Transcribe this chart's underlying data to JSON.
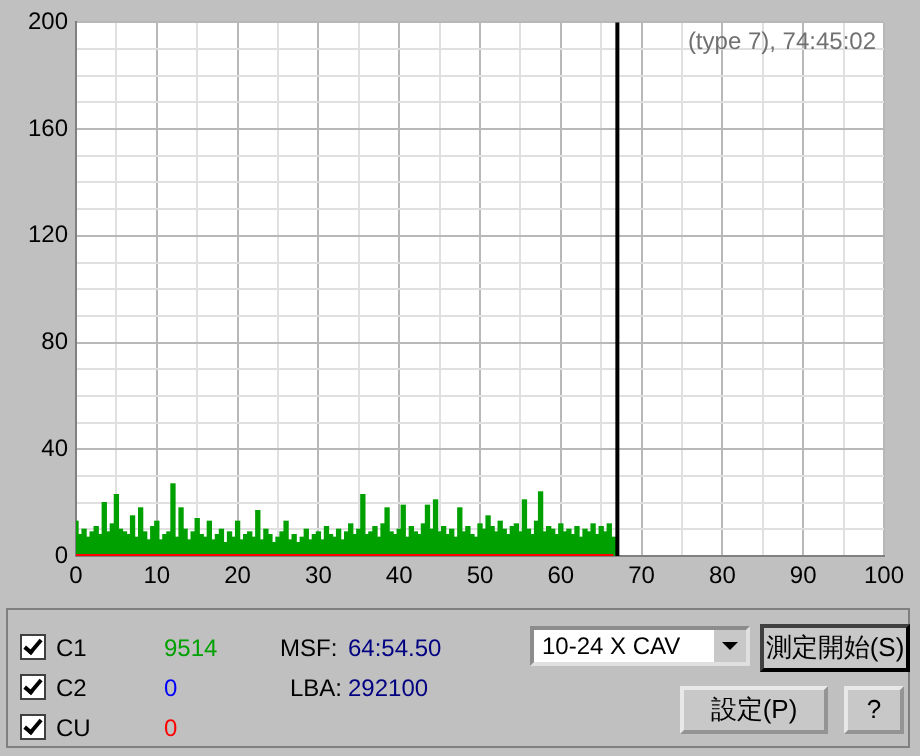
{
  "chart_data": {
    "type": "bar",
    "x": [
      0,
      0.5,
      1,
      1.5,
      2,
      2.5,
      3,
      3.5,
      4,
      4.5,
      5,
      5.5,
      6,
      6.5,
      7,
      7.5,
      8,
      8.5,
      9,
      9.5,
      10,
      10.5,
      11,
      11.5,
      12,
      12.5,
      13,
      13.5,
      14,
      14.5,
      15,
      15.5,
      16,
      16.5,
      17,
      17.5,
      18,
      18.5,
      19,
      19.5,
      20,
      20.5,
      21,
      21.5,
      22,
      22.5,
      23,
      23.5,
      24,
      24.5,
      25,
      25.5,
      26,
      26.5,
      27,
      27.5,
      28,
      28.5,
      29,
      29.5,
      30,
      30.5,
      31,
      31.5,
      32,
      32.5,
      33,
      33.5,
      34,
      34.5,
      35,
      35.5,
      36,
      36.5,
      37,
      37.5,
      38,
      38.5,
      39,
      39.5,
      40,
      40.5,
      41,
      41.5,
      42,
      42.5,
      43,
      43.5,
      44,
      44.5,
      45,
      45.5,
      46,
      46.5,
      47,
      47.5,
      48,
      48.5,
      49,
      49.5,
      50,
      50.5,
      51,
      51.5,
      52,
      52.5,
      53,
      53.5,
      54,
      54.5,
      55,
      55.5,
      56,
      56.5,
      57,
      57.5,
      58,
      58.5,
      59,
      59.5,
      60,
      60.5,
      61,
      61.5,
      62,
      62.5,
      63,
      63.5,
      64,
      64.5,
      65,
      65.5,
      66,
      66.5
    ],
    "series": [
      {
        "color": "#00a000",
        "values": [
          13,
          8,
          10,
          7,
          9,
          11,
          8,
          20,
          9,
          12,
          23,
          10,
          9,
          8,
          15,
          7,
          18,
          9,
          6,
          11,
          13,
          6,
          8,
          9,
          27,
          7,
          18,
          10,
          6,
          9,
          14,
          8,
          7,
          13,
          6,
          8,
          10,
          5,
          9,
          7,
          13,
          6,
          8,
          9,
          7,
          17,
          6,
          10,
          8,
          5,
          7,
          9,
          13,
          6,
          8,
          5,
          7,
          10,
          6,
          8,
          9,
          6,
          11,
          8,
          7,
          10,
          6,
          9,
          12,
          8,
          10,
          23,
          8,
          9,
          11,
          7,
          12,
          18,
          9,
          8,
          10,
          19,
          7,
          11,
          9,
          8,
          12,
          19,
          10,
          21,
          9,
          11,
          8,
          10,
          7,
          18,
          9,
          11,
          8,
          7,
          12,
          10,
          15,
          11,
          9,
          13,
          10,
          8,
          11,
          12,
          9,
          21,
          10,
          8,
          13,
          24,
          9,
          11,
          10,
          8,
          12,
          9,
          10,
          8,
          11,
          7,
          10,
          9,
          12,
          8,
          11,
          9,
          12,
          7
        ]
      },
      {
        "type": "line",
        "color": "#ff0000",
        "x": [
          0,
          66.5
        ],
        "values": [
          0,
          0
        ]
      }
    ],
    "xlim": [
      0,
      100
    ],
    "xticks": [
      0,
      {
        "value": 5,
        "label": null
      },
      10,
      {
        "value": 15,
        "label": null
      },
      20,
      {
        "value": 25,
        "label": null
      },
      30,
      {
        "value": 35,
        "label": null
      },
      40,
      {
        "value": 45,
        "label": null
      },
      50,
      {
        "value": 55,
        "label": null
      },
      60,
      {
        "value": 65,
        "label": null
      },
      70,
      {
        "value": 75,
        "label": null
      },
      80,
      {
        "value": 85,
        "label": null
      },
      90,
      {
        "value": 95,
        "label": null
      },
      100
    ],
    "ylim": [
      0,
      200
    ],
    "yticks": [
      0,
      {
        "value": 10,
        "label": null
      },
      {
        "value": 20,
        "label": null
      },
      {
        "value": 30,
        "label": null
      },
      40,
      {
        "value": 50,
        "label": null
      },
      {
        "value": 60,
        "label": null
      },
      {
        "value": 70,
        "label": null
      },
      80,
      {
        "value": 90,
        "label": null
      },
      {
        "value": 100,
        "label": null
      },
      {
        "value": 110,
        "label": null
      },
      120,
      {
        "value": 130,
        "label": null
      },
      {
        "value": 140,
        "label": null
      },
      {
        "value": 150,
        "label": null
      },
      160,
      {
        "value": 170,
        "label": null
      },
      {
        "value": 180,
        "label": null
      },
      {
        "value": 190,
        "label": null
      },
      200
    ],
    "grid": true,
    "ref_lines": [
      {
        "axis": "x",
        "value": 67,
        "color": "#000000"
      }
    ],
    "annotations": [
      "(type 7), 74:45:02",
      "9514",
      "0",
      "0",
      "C1",
      "C2",
      "CU",
      "MSF:",
      "64:54.50",
      "LBA:",
      "292100",
      "10-24 X CAV",
      "測定開始(S)",
      "設定(P)",
      "?"
    ]
  }
}
